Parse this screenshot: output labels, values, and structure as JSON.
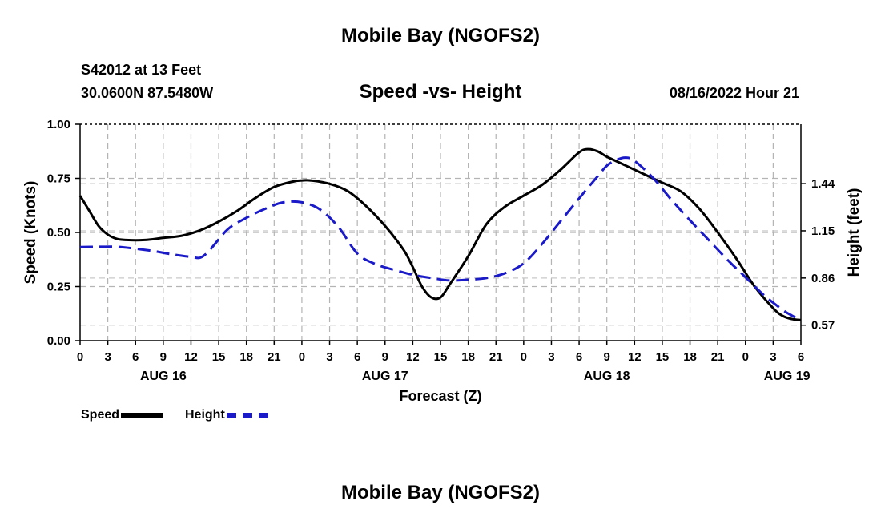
{
  "title": "Mobile Bay (NGOFS2)",
  "footer_title": "Mobile Bay (NGOFS2)",
  "station": "S42012 at 13 Feet",
  "coordinates": "30.0600N  87.5480W",
  "datetime": "08/16/2022 Hour 21",
  "colors": {
    "speed": "#000000",
    "height": "#1a1ac8"
  },
  "chart_data": {
    "type": "line",
    "title": "Speed -vs- Height",
    "xlabel": "Forecast (Z)",
    "ylabel": "Speed (Knots)",
    "y2label": "Height (feet)",
    "x_unit": "hours since 00Z Aug 16",
    "xlim": [
      0,
      78
    ],
    "ylim": [
      0,
      1.0
    ],
    "y2lim": [
      0.475,
      1.805
    ],
    "y_ticks": [
      "0.00",
      "0.25",
      "0.50",
      "0.75",
      "1.00"
    ],
    "y_tick_values": [
      0,
      0.25,
      0.5,
      0.75,
      1.0
    ],
    "y2_ticks": [
      "0.57",
      "0.86",
      "1.15",
      "1.44"
    ],
    "y2_tick_values": [
      0.57,
      0.86,
      1.15,
      1.44
    ],
    "x_tick_values": [
      0,
      3,
      6,
      9,
      12,
      15,
      18,
      21,
      24,
      27,
      30,
      33,
      36,
      39,
      42,
      45,
      48,
      51,
      54,
      57,
      60,
      63,
      66,
      69,
      72,
      75,
      78
    ],
    "x_tick_labels": [
      "0",
      "3",
      "6",
      "9",
      "12",
      "15",
      "18",
      "21",
      "0",
      "3",
      "6",
      "9",
      "12",
      "15",
      "18",
      "21",
      "0",
      "3",
      "6",
      "9",
      "12",
      "15",
      "18",
      "21",
      "0",
      "3",
      "6"
    ],
    "date_labels": [
      {
        "x": 9,
        "label": "AUG 16"
      },
      {
        "x": 33,
        "label": "AUG 17"
      },
      {
        "x": 57,
        "label": "AUG 18"
      },
      {
        "x": 76.5,
        "label": "AUG 19"
      }
    ],
    "legend": {
      "speed": "Speed",
      "height": "Height",
      "placement": "bottom-left"
    },
    "series": [
      {
        "name": "Speed",
        "axis": "left",
        "style": "solid",
        "x": [
          0,
          1,
          2,
          3,
          4,
          5,
          7,
          9,
          11,
          13,
          15,
          17,
          19,
          21,
          23,
          24,
          25,
          27,
          29,
          31,
          33,
          35,
          36,
          37,
          38,
          39,
          40,
          42,
          44,
          46,
          48,
          50,
          52,
          54,
          55,
          56,
          57,
          59,
          61,
          63,
          65,
          67,
          69,
          71,
          73,
          75,
          76,
          77,
          78
        ],
        "values": [
          0.67,
          0.6,
          0.53,
          0.49,
          0.47,
          0.465,
          0.465,
          0.475,
          0.485,
          0.51,
          0.55,
          0.6,
          0.66,
          0.71,
          0.735,
          0.74,
          0.74,
          0.725,
          0.69,
          0.62,
          0.53,
          0.42,
          0.34,
          0.25,
          0.2,
          0.2,
          0.26,
          0.39,
          0.54,
          0.62,
          0.67,
          0.72,
          0.79,
          0.87,
          0.885,
          0.875,
          0.85,
          0.81,
          0.77,
          0.73,
          0.69,
          0.61,
          0.5,
          0.38,
          0.25,
          0.15,
          0.115,
          0.1,
          0.095
        ]
      },
      {
        "name": "Height",
        "axis": "right",
        "style": "dashed",
        "x": [
          0,
          2,
          4,
          6,
          8,
          10,
          12,
          13,
          14,
          16,
          18,
          20,
          22,
          24,
          26,
          28,
          30,
          32,
          34,
          36,
          38,
          40,
          42,
          44,
          46,
          48,
          50,
          52,
          54,
          56,
          57,
          58,
          59,
          60,
          62,
          64,
          66,
          68,
          70,
          72,
          74,
          76,
          77,
          78
        ],
        "values": [
          1.05,
          1.052,
          1.052,
          1.04,
          1.025,
          1.005,
          0.99,
          0.985,
          1.03,
          1.16,
          1.23,
          1.285,
          1.325,
          1.325,
          1.28,
          1.17,
          1.01,
          0.945,
          0.91,
          0.88,
          0.86,
          0.845,
          0.85,
          0.86,
          0.89,
          0.95,
          1.07,
          1.21,
          1.35,
          1.485,
          1.55,
          1.585,
          1.6,
          1.58,
          1.475,
          1.34,
          1.215,
          1.095,
          0.975,
          0.865,
          0.755,
          0.665,
          0.63,
          0.6
        ]
      }
    ]
  }
}
